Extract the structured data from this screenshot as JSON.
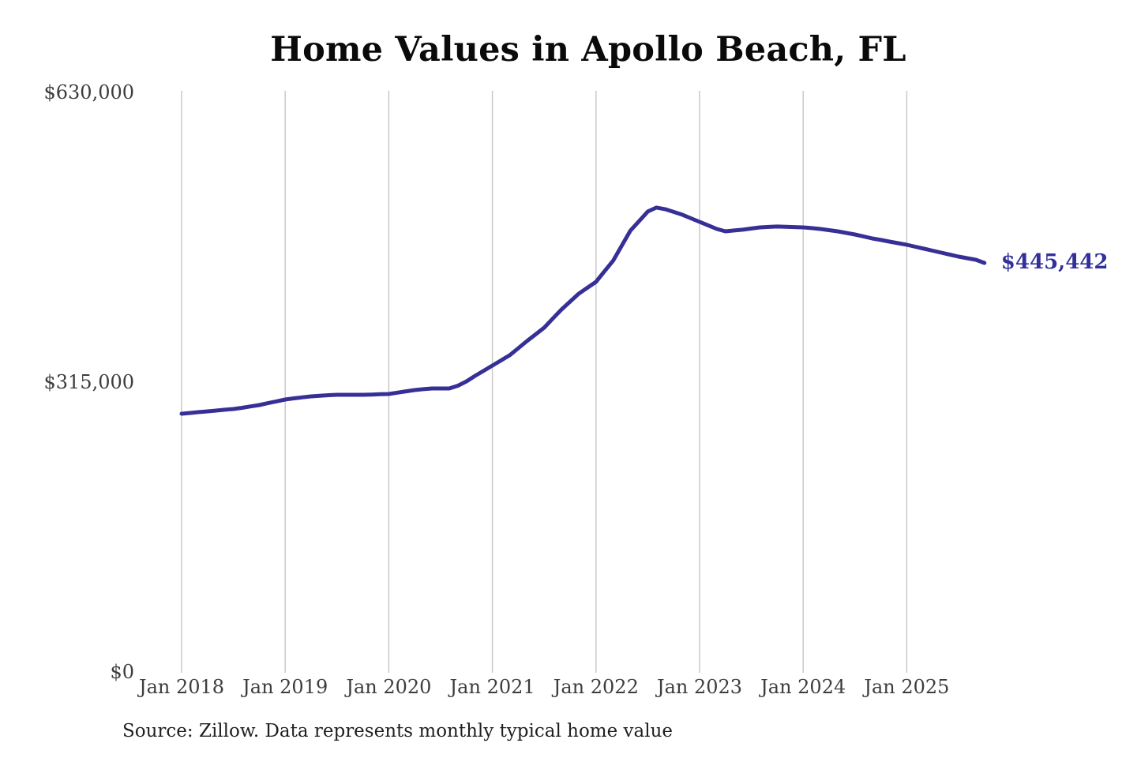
{
  "title": "Home Values in Apollo Beach, FL",
  "source_note": "Source: Zillow. Data represents monthly typical home value",
  "end_label": "$445,442",
  "colors": {
    "line": "#363096",
    "end_label_text": "#33309c",
    "grid": "#c9c9c9",
    "axis_text": "#3d3d3d",
    "title_text": "#0a0a0a",
    "source_text": "#1f1f1f",
    "background": "#ffffff"
  },
  "chart_data": {
    "type": "line",
    "title": "Home Values in Apollo Beach, FL",
    "xlabel": "",
    "ylabel": "",
    "ylim": [
      0,
      630000
    ],
    "ytick_values": [
      0,
      315000,
      630000
    ],
    "ytick_labels": [
      "$0",
      "$315,000",
      "$630,000"
    ],
    "xtick_labels": [
      "Jan 2018",
      "Jan 2019",
      "Jan 2020",
      "Jan 2021",
      "Jan 2022",
      "Jan 2023",
      "Jan 2024",
      "Jan 2025"
    ],
    "grid": "vertical-only",
    "legend": "none",
    "series_name": "Monthly typical home value",
    "latest_point": {
      "x": "2025-10",
      "value": 445442,
      "label": "$445,442"
    },
    "x": [
      "2018-01",
      "2018-02",
      "2018-03",
      "2018-04",
      "2018-05",
      "2018-06",
      "2018-07",
      "2018-08",
      "2018-09",
      "2018-10",
      "2018-11",
      "2018-12",
      "2019-01",
      "2019-02",
      "2019-03",
      "2019-04",
      "2019-05",
      "2019-06",
      "2019-07",
      "2019-08",
      "2019-09",
      "2019-10",
      "2019-11",
      "2019-12",
      "2020-01",
      "2020-02",
      "2020-03",
      "2020-04",
      "2020-05",
      "2020-06",
      "2020-07",
      "2020-08",
      "2020-09",
      "2020-10",
      "2020-11",
      "2020-12",
      "2021-01",
      "2021-02",
      "2021-03",
      "2021-04",
      "2021-05",
      "2021-06",
      "2021-07",
      "2021-08",
      "2021-09",
      "2021-10",
      "2021-11",
      "2021-12",
      "2022-01",
      "2022-02",
      "2022-03",
      "2022-04",
      "2022-05",
      "2022-06",
      "2022-07",
      "2022-08",
      "2022-09",
      "2022-10",
      "2022-11",
      "2022-12",
      "2023-01",
      "2023-02",
      "2023-03",
      "2023-04",
      "2023-05",
      "2023-06",
      "2023-07",
      "2023-08",
      "2023-09",
      "2023-10",
      "2023-11",
      "2023-12",
      "2024-01",
      "2024-02",
      "2024-03",
      "2024-04",
      "2024-05",
      "2024-06",
      "2024-07",
      "2024-08",
      "2024-09",
      "2024-10",
      "2024-11",
      "2024-12",
      "2025-01",
      "2025-02",
      "2025-03",
      "2025-04",
      "2025-05",
      "2025-06",
      "2025-07",
      "2025-08",
      "2025-09",
      "2025-10"
    ],
    "values": [
      281500,
      282400,
      283300,
      284100,
      285000,
      285900,
      286700,
      288000,
      289500,
      291000,
      293000,
      295000,
      297000,
      298300,
      299400,
      300400,
      301100,
      301700,
      302100,
      302100,
      302100,
      302100,
      302400,
      302700,
      303000,
      304400,
      305900,
      307300,
      308200,
      309000,
      309000,
      309000,
      312000,
      316700,
      322700,
      328300,
      333900,
      339500,
      345100,
      352800,
      360500,
      367800,
      375100,
      385000,
      394800,
      403400,
      412000,
      418500,
      424900,
      436500,
      448100,
      464400,
      480700,
      491000,
      501300,
      505600,
      503900,
      500900,
      497900,
      494000,
      490100,
      486300,
      482400,
      479800,
      480700,
      481600,
      482900,
      484100,
      484600,
      485000,
      484700,
      484400,
      484100,
      483300,
      482400,
      481100,
      479800,
      478100,
      476400,
      474300,
      472100,
      470400,
      468600,
      466900,
      465200,
      463100,
      460900,
      458800,
      456600,
      454500,
      452300,
      450600,
      448900,
      445442
    ]
  }
}
